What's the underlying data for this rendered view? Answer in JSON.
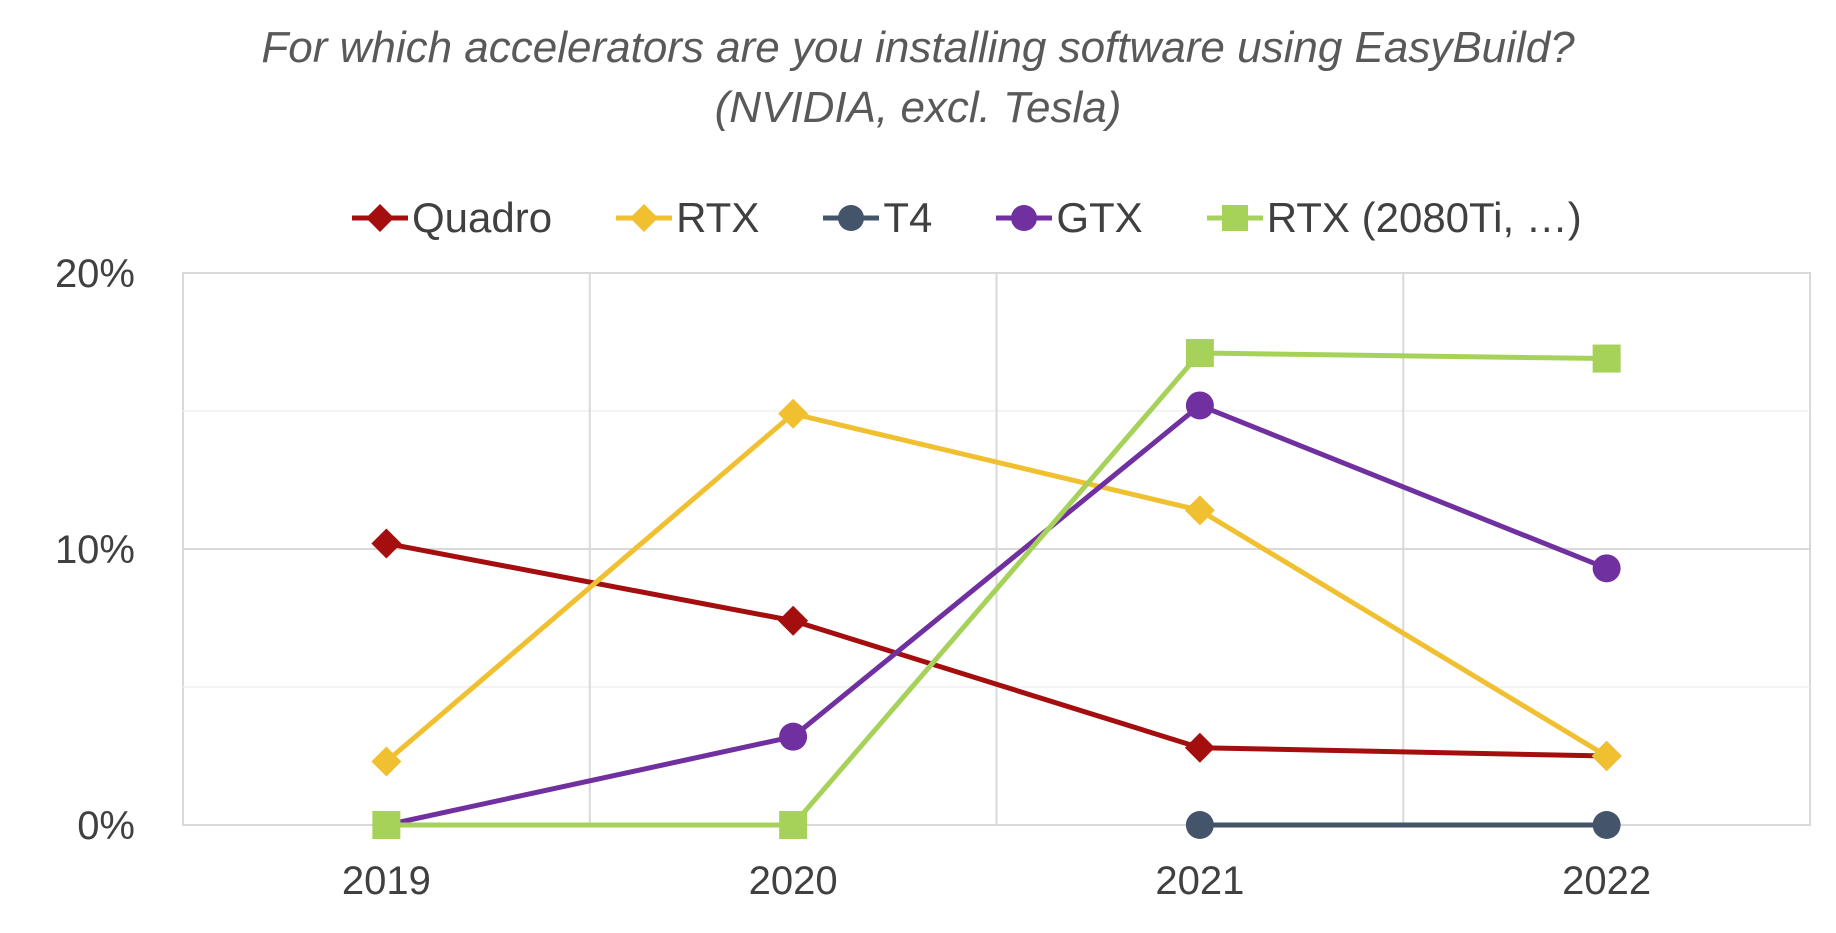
{
  "chart_data": {
    "type": "line",
    "title": "For which accelerators are you installing software using EasyBuild?",
    "subtitle": "(NVIDIA, excl. Tesla)",
    "categories": [
      "2019",
      "2020",
      "2021",
      "2022"
    ],
    "y_ticks": [
      "0%",
      "10%",
      "20%"
    ],
    "ylim": [
      0,
      20
    ],
    "grid": true,
    "legend_position": "top",
    "series": [
      {
        "name": "Quadro",
        "color": "#a50e0e",
        "marker": "diamond",
        "values": [
          10.2,
          7.4,
          2.8,
          2.5
        ]
      },
      {
        "name": "RTX",
        "color": "#f0c030",
        "marker": "diamond",
        "values": [
          2.3,
          14.9,
          11.4,
          2.5
        ]
      },
      {
        "name": "T4",
        "color": "#44546a",
        "marker": "circle",
        "values": [
          null,
          null,
          0,
          0
        ]
      },
      {
        "name": "GTX",
        "color": "#7030a0",
        "marker": "circle",
        "values": [
          0,
          3.2,
          15.2,
          9.3
        ]
      },
      {
        "name": "RTX (2080Ti, …)",
        "color": "#a6d25a",
        "marker": "square",
        "values": [
          0,
          0,
          17.1,
          16.9
        ]
      }
    ]
  }
}
